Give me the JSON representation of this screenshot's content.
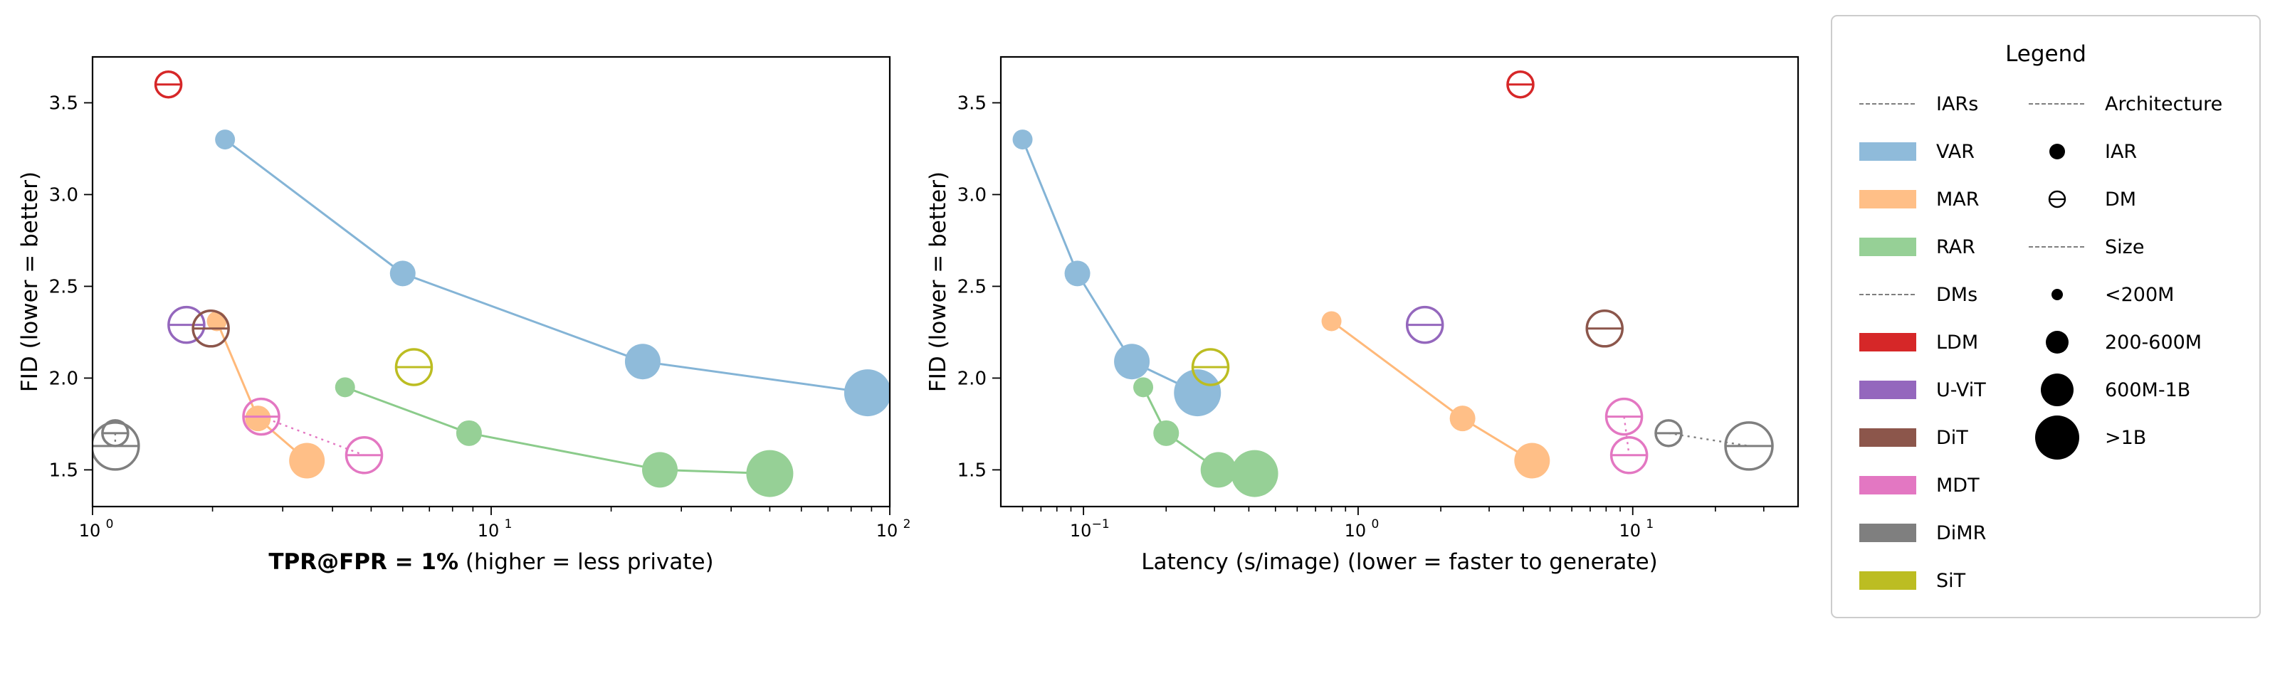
{
  "colors": {
    "VAR": "#1f77b4",
    "MAR": "#ff7f0e",
    "RAR": "#2ca02c",
    "LDM": "#d62728",
    "U-ViT": "#9467bd",
    "DiT": "#8c564b",
    "MDT": "#e377c2",
    "DiMR": "#7f7f7f",
    "SiT": "#bcbd22"
  },
  "chart_data": [
    {
      "type": "scatter",
      "xscale": "log",
      "xlim": [
        1,
        100
      ],
      "ylim": [
        1.3,
        3.75
      ],
      "xticks": [
        1,
        10,
        100
      ],
      "xtick_labels": [
        "10",
        "10",
        "10"
      ],
      "xtick_exps": [
        "0",
        "1",
        "2"
      ],
      "yticks": [
        1.5,
        2.0,
        2.5,
        3.0,
        3.5
      ],
      "ytick_labels": [
        "1.5",
        "2.0",
        "2.5",
        "3.0",
        "3.5"
      ],
      "xlabel_bold": "TPR@FPR = 1%",
      "xlabel_rest": " (higher = less private)",
      "ylabel": "FID (lower = better)",
      "series": [
        {
          "name": "VAR",
          "kind": "IAR",
          "points": [
            {
              "x": 2.15,
              "y": 3.3,
              "size": "<200M"
            },
            {
              "x": 6.0,
              "y": 2.57,
              "size": "200-600M"
            },
            {
              "x": 24.0,
              "y": 2.09,
              "size": "600M-1B"
            },
            {
              "x": 88.0,
              "y": 1.92,
              "size": ">1B"
            }
          ]
        },
        {
          "name": "MAR",
          "kind": "IAR",
          "points": [
            {
              "x": 2.05,
              "y": 2.31,
              "size": "<200M"
            },
            {
              "x": 2.6,
              "y": 1.78,
              "size": "200-600M"
            },
            {
              "x": 3.45,
              "y": 1.55,
              "size": "600M-1B"
            }
          ]
        },
        {
          "name": "RAR",
          "kind": "IAR",
          "points": [
            {
              "x": 4.3,
              "y": 1.95,
              "size": "<200M"
            },
            {
              "x": 8.8,
              "y": 1.7,
              "size": "200-600M"
            },
            {
              "x": 26.5,
              "y": 1.5,
              "size": "600M-1B"
            },
            {
              "x": 50.0,
              "y": 1.48,
              "size": ">1B"
            }
          ]
        },
        {
          "name": "LDM",
          "kind": "DM",
          "points": [
            {
              "x": 1.55,
              "y": 3.6,
              "size": "200-600M"
            }
          ]
        },
        {
          "name": "U-ViT",
          "kind": "DM",
          "points": [
            {
              "x": 1.72,
              "y": 2.29,
              "size": "600M-1B"
            }
          ]
        },
        {
          "name": "DiT",
          "kind": "DM",
          "points": [
            {
              "x": 1.98,
              "y": 2.27,
              "size": "600M-1B"
            }
          ]
        },
        {
          "name": "MDT",
          "kind": "DM",
          "points": [
            {
              "x": 2.65,
              "y": 1.79,
              "size": "600M-1B"
            },
            {
              "x": 4.8,
              "y": 1.58,
              "size": "600M-1B"
            }
          ]
        },
        {
          "name": "DiMR",
          "kind": "DM",
          "points": [
            {
              "x": 1.14,
              "y": 1.7,
              "size": "200-600M"
            },
            {
              "x": 1.14,
              "y": 1.63,
              "size": ">1B"
            }
          ]
        },
        {
          "name": "SiT",
          "kind": "DM",
          "points": [
            {
              "x": 6.4,
              "y": 2.06,
              "size": "600M-1B"
            }
          ]
        }
      ]
    },
    {
      "type": "scatter",
      "xscale": "log",
      "xlim": [
        0.05,
        40
      ],
      "ylim": [
        1.3,
        3.75
      ],
      "xticks": [
        0.1,
        1,
        10
      ],
      "xtick_labels": [
        "10",
        "10",
        "10"
      ],
      "xtick_exps": [
        "−1",
        "0",
        "1"
      ],
      "yticks": [
        1.5,
        2.0,
        2.5,
        3.0,
        3.5
      ],
      "ytick_labels": [
        "1.5",
        "2.0",
        "2.5",
        "3.0",
        "3.5"
      ],
      "xlabel": "Latency (s/image) (lower = faster to generate)",
      "ylabel": "FID (lower = better)",
      "series": [
        {
          "name": "VAR",
          "kind": "IAR",
          "points": [
            {
              "x": 0.06,
              "y": 3.3,
              "size": "<200M"
            },
            {
              "x": 0.095,
              "y": 2.57,
              "size": "200-600M"
            },
            {
              "x": 0.15,
              "y": 2.09,
              "size": "600M-1B"
            },
            {
              "x": 0.26,
              "y": 1.92,
              "size": ">1B"
            }
          ]
        },
        {
          "name": "MAR",
          "kind": "IAR",
          "points": [
            {
              "x": 0.8,
              "y": 2.31,
              "size": "<200M"
            },
            {
              "x": 2.4,
              "y": 1.78,
              "size": "200-600M"
            },
            {
              "x": 4.3,
              "y": 1.55,
              "size": "600M-1B"
            }
          ]
        },
        {
          "name": "RAR",
          "kind": "IAR",
          "points": [
            {
              "x": 0.165,
              "y": 1.95,
              "size": "<200M"
            },
            {
              "x": 0.2,
              "y": 1.7,
              "size": "200-600M"
            },
            {
              "x": 0.31,
              "y": 1.5,
              "size": "600M-1B"
            },
            {
              "x": 0.42,
              "y": 1.48,
              "size": ">1B"
            }
          ]
        },
        {
          "name": "LDM",
          "kind": "DM",
          "points": [
            {
              "x": 3.9,
              "y": 3.6,
              "size": "200-600M"
            }
          ]
        },
        {
          "name": "U-ViT",
          "kind": "DM",
          "points": [
            {
              "x": 1.75,
              "y": 2.29,
              "size": "600M-1B"
            }
          ]
        },
        {
          "name": "DiT",
          "kind": "DM",
          "points": [
            {
              "x": 7.9,
              "y": 2.27,
              "size": "600M-1B"
            }
          ]
        },
        {
          "name": "MDT",
          "kind": "DM",
          "points": [
            {
              "x": 9.3,
              "y": 1.79,
              "size": "600M-1B"
            },
            {
              "x": 9.7,
              "y": 1.58,
              "size": "600M-1B"
            }
          ]
        },
        {
          "name": "DiMR",
          "kind": "DM",
          "points": [
            {
              "x": 13.5,
              "y": 1.7,
              "size": "200-600M"
            },
            {
              "x": 26.5,
              "y": 1.63,
              "size": ">1B"
            }
          ]
        },
        {
          "name": "SiT",
          "kind": "DM",
          "points": [
            {
              "x": 0.29,
              "y": 2.06,
              "size": "600M-1B"
            }
          ]
        }
      ]
    }
  ],
  "legend": {
    "title": "Legend",
    "col1": [
      {
        "label": "IARs",
        "kind": "header"
      },
      {
        "label": "VAR",
        "kind": "patch",
        "key": "VAR"
      },
      {
        "label": "MAR",
        "kind": "patch",
        "key": "MAR"
      },
      {
        "label": "RAR",
        "kind": "patch",
        "key": "RAR"
      },
      {
        "label": "DMs",
        "kind": "header"
      },
      {
        "label": "LDM",
        "kind": "patch",
        "key": "LDM"
      },
      {
        "label": "U-ViT",
        "kind": "patch",
        "key": "U-ViT"
      },
      {
        "label": "DiT",
        "kind": "patch",
        "key": "DiT"
      },
      {
        "label": "MDT",
        "kind": "patch",
        "key": "MDT"
      },
      {
        "label": "DiMR",
        "kind": "patch",
        "key": "DiMR"
      },
      {
        "label": "SiT",
        "kind": "patch",
        "key": "SiT"
      }
    ],
    "col2": [
      {
        "label": "Architecture",
        "kind": "header"
      },
      {
        "label": "IAR",
        "kind": "iar"
      },
      {
        "label": "DM",
        "kind": "dm"
      },
      {
        "label": "Size",
        "kind": "header"
      },
      {
        "label": "<200M",
        "kind": "size",
        "size": "<200M"
      },
      {
        "label": "200-600M",
        "kind": "size",
        "size": "200-600M"
      },
      {
        "label": "600M-1B",
        "kind": "size",
        "size": "600M-1B"
      },
      {
        "label": ">1B",
        "kind": "size",
        "size": ">1B"
      }
    ]
  }
}
